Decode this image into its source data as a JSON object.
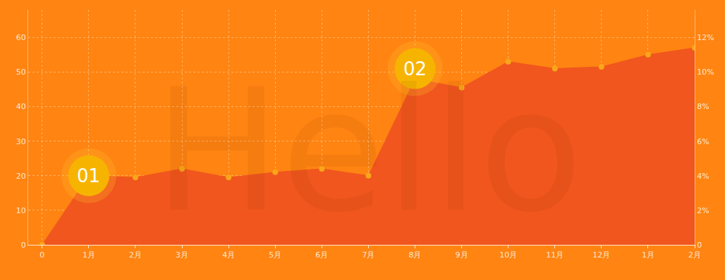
{
  "chart_data": {
    "type": "area",
    "categories": [
      "0",
      "1月",
      "2月",
      "3月",
      "4月",
      "5月",
      "6月",
      "7月",
      "8月",
      "9月",
      "10月",
      "11月",
      "12月",
      "1月",
      "2月"
    ],
    "values": [
      0,
      20,
      19.5,
      22,
      19.5,
      21,
      22,
      20,
      48,
      45.5,
      53,
      51,
      51.5,
      55,
      57
    ],
    "color": "#f0561e",
    "marker": "circle",
    "ylim": [
      0,
      68
    ],
    "yticks": [
      0,
      10,
      20,
      30,
      40,
      50,
      60
    ],
    "y2lim": [
      0,
      13.6
    ],
    "y2ticks": [
      0,
      {
        "value": 2,
        "label": "2%"
      },
      {
        "value": 4,
        "label": "4%"
      },
      {
        "value": 6,
        "label": "6%"
      },
      {
        "value": 8,
        "label": "8%"
      },
      {
        "value": 10,
        "label": "10%"
      },
      {
        "value": 12,
        "label": "12%"
      }
    ],
    "grid": true,
    "annotations": [
      {
        "text": "01",
        "x": 1,
        "y": 20
      },
      {
        "text": "02",
        "x": 8,
        "y": 51
      },
      {
        "text": "Hello",
        "x": 7,
        "y": 27
      }
    ]
  }
}
